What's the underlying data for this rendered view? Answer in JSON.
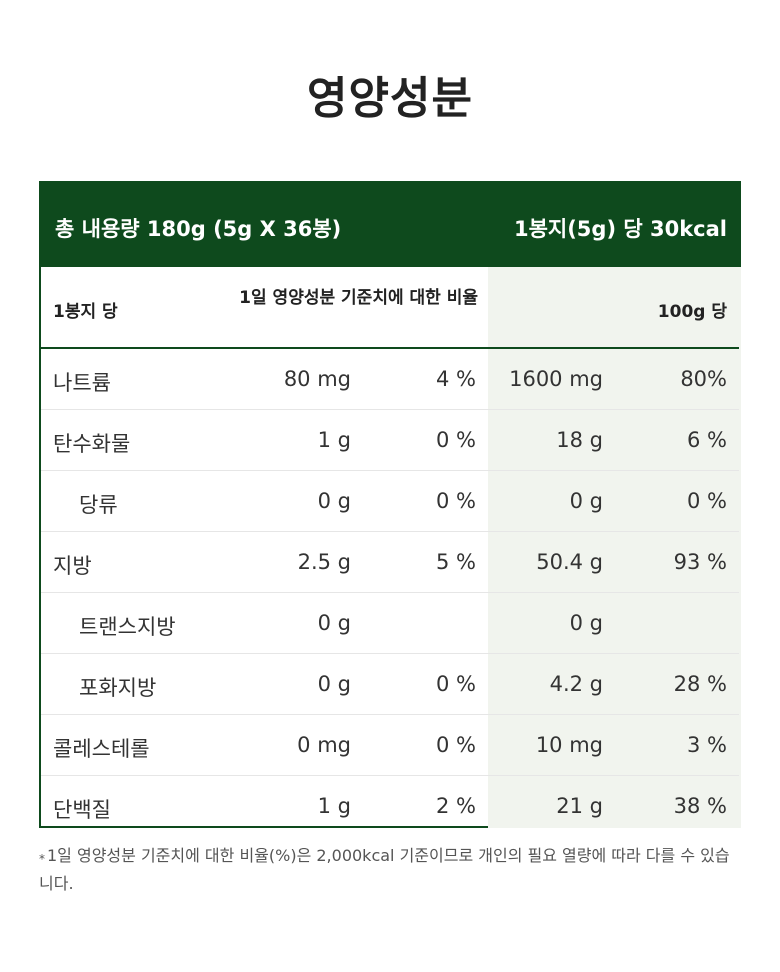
{
  "title": "영양성분",
  "header": {
    "total": "총 내용량 180g (5g X 36봉)",
    "per_serving": "1봉지(5g) 당 30kcal"
  },
  "subheader": {
    "col1": "1봉지 당",
    "col2": "1일 영양성분 기준치에 대한 비율",
    "col3": "100g 당"
  },
  "rows": [
    {
      "name": "나트륨",
      "amount": "80 mg",
      "pct": "4 %",
      "per100": "1600 mg",
      "per100_pct": "80%",
      "indent": false
    },
    {
      "name": "탄수화물",
      "amount": "1 g",
      "pct": "0 %",
      "per100": "18 g",
      "per100_pct": "6 %",
      "indent": false
    },
    {
      "name": "당류",
      "amount": "0 g",
      "pct": "0 %",
      "per100": "0 g",
      "per100_pct": "0 %",
      "indent": true
    },
    {
      "name": "지방",
      "amount": "2.5 g",
      "pct": "5 %",
      "per100": "50.4 g",
      "per100_pct": "93 %",
      "indent": false
    },
    {
      "name": "트랜스지방",
      "amount": "0 g",
      "pct": "",
      "per100": "0 g",
      "per100_pct": "",
      "indent": true
    },
    {
      "name": "포화지방",
      "amount": "0 g",
      "pct": "0 %",
      "per100": "4.2 g",
      "per100_pct": "28 %",
      "indent": true
    },
    {
      "name": "콜레스테롤",
      "amount": "0 mg",
      "pct": "0 %",
      "per100": "10 mg",
      "per100_pct": "3 %",
      "indent": false
    },
    {
      "name": "단백질",
      "amount": "1 g",
      "pct": "2 %",
      "per100": "21 g",
      "per100_pct": "38 %",
      "indent": false
    }
  ],
  "footnote": {
    "mark": "*",
    "text": "1일 영양성분 기준치에 대한 비율(%)은 2,000kcal 기준이므로 개인의 필요 열량에 따라 다를 수 있습니다."
  },
  "colors": {
    "green": "#0e4a1d",
    "shade": "#f1f4ee"
  }
}
